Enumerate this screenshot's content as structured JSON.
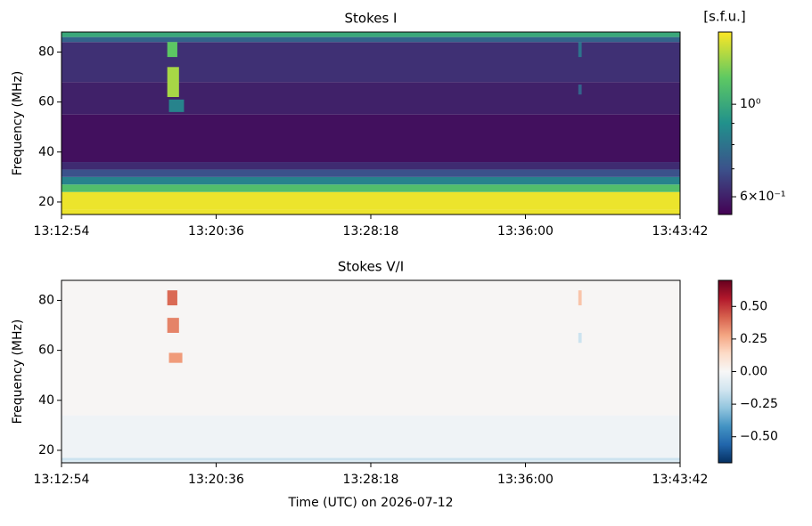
{
  "chart_data": [
    {
      "type": "heatmap",
      "title": "Stokes I",
      "ylabel": "Frequency (MHz)",
      "xlim": [
        47574,
        49422
      ],
      "xticks": [
        {
          "value": 47574,
          "label": "13:12:54"
        },
        {
          "value": 48036,
          "label": "13:20:36"
        },
        {
          "value": 48498,
          "label": "13:28:18"
        },
        {
          "value": 48960,
          "label": "13:36:00"
        },
        {
          "value": 49422,
          "label": "13:43:42"
        }
      ],
      "ylim": [
        15,
        88
      ],
      "yticks": [
        20,
        40,
        60,
        80
      ],
      "colormap": "viridis",
      "color_scale": "log",
      "clim": [
        0.544,
        1.49
      ],
      "colorbar_label": "[s.f.u.]",
      "colorbar_ticks": [
        {
          "value": 1,
          "label": "10⁰"
        },
        {
          "value": 0.6,
          "label": "6×10⁻¹"
        }
      ],
      "colorbar_minor_ticks": [
        0.7,
        0.8,
        0.9
      ],
      "rows": {
        "y_edges": [
          15,
          17,
          24,
          27,
          30,
          33,
          36,
          55,
          68,
          84,
          86,
          88
        ],
        "values": [
          1.45,
          1.45,
          1.1,
          0.85,
          0.7,
          0.62,
          0.57,
          0.6,
          0.63,
          0.75,
          1.0
        ]
      },
      "features": [
        {
          "x": [
            47890,
            47920
          ],
          "y": [
            78,
            84
          ],
          "value": 1.15
        },
        {
          "x": [
            47890,
            47925
          ],
          "y": [
            62,
            74
          ],
          "value": 1.3
        },
        {
          "x": [
            47895,
            47940
          ],
          "y": [
            56,
            61
          ],
          "value": 0.85
        },
        {
          "x": [
            49118,
            49128
          ],
          "y": [
            78,
            84
          ],
          "value": 0.8
        },
        {
          "x": [
            49118,
            49128
          ],
          "y": [
            63,
            67
          ],
          "value": 0.75
        }
      ]
    },
    {
      "type": "heatmap",
      "title": "Stokes V/I",
      "ylabel": "Frequency (MHz)",
      "xlabel": "Time (UTC) on 2026-07-12",
      "xlim": [
        47574,
        49422
      ],
      "xticks": [
        {
          "value": 47574,
          "label": "13:12:54"
        },
        {
          "value": 48036,
          "label": "13:20:36"
        },
        {
          "value": 48498,
          "label": "13:28:18"
        },
        {
          "value": 48960,
          "label": "13:36:00"
        },
        {
          "value": 49422,
          "label": "13:43:42"
        }
      ],
      "ylim": [
        15,
        88
      ],
      "yticks": [
        20,
        40,
        60,
        80
      ],
      "colormap": "RdBu_r",
      "color_scale": "linear",
      "clim": [
        -0.7,
        0.7
      ],
      "colorbar_ticks": [
        {
          "value": 0.5,
          "label": "0.50"
        },
        {
          "value": 0.25,
          "label": "0.25"
        },
        {
          "value": 0,
          "label": "0.00"
        },
        {
          "value": -0.25,
          "label": "−0.25"
        },
        {
          "value": -0.5,
          "label": "−0.50"
        }
      ],
      "rows": {
        "y_edges": [
          15,
          16,
          17,
          34,
          88
        ],
        "values": [
          -0.1,
          -0.15,
          -0.03,
          0.01
        ]
      },
      "features": [
        {
          "x": [
            47890,
            47920
          ],
          "y": [
            78,
            84
          ],
          "value": 0.4
        },
        {
          "x": [
            47890,
            47925
          ],
          "y": [
            67,
            73
          ],
          "value": 0.35
        },
        {
          "x": [
            47895,
            47935
          ],
          "y": [
            55,
            59
          ],
          "value": 0.3
        },
        {
          "x": [
            49118,
            49128
          ],
          "y": [
            78,
            84
          ],
          "value": 0.2
        },
        {
          "x": [
            49118,
            49128
          ],
          "y": [
            63,
            67
          ],
          "value": -0.15
        }
      ]
    }
  ]
}
